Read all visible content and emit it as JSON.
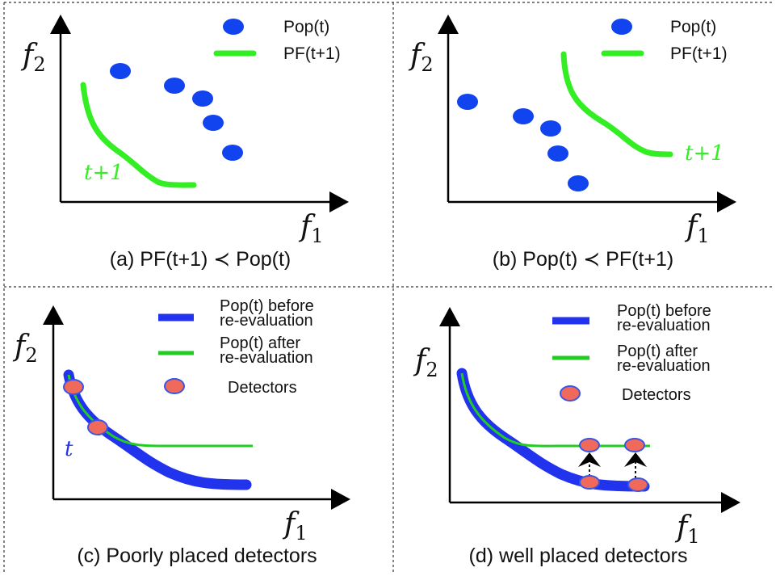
{
  "panels": {
    "a": {
      "caption": "(a) PF(t+1)  ≺  Pop(t)",
      "legend": {
        "pop": "Pop(t)",
        "pf": "PF(t+1)"
      },
      "curve_label": "t+1",
      "x_axis": {
        "letter": "f",
        "sub": "1"
      },
      "y_axis": {
        "letter": "f",
        "sub": "2"
      }
    },
    "b": {
      "caption": "(b) Pop(t)  ≺  PF(t+1)",
      "legend": {
        "pop": "Pop(t)",
        "pf": "PF(t+1)"
      },
      "curve_label": "t+1",
      "x_axis": {
        "letter": "f",
        "sub": "1"
      },
      "y_axis": {
        "letter": "f",
        "sub": "2"
      }
    },
    "c": {
      "caption": "(c) Poorly placed detectors",
      "legend": {
        "before_l1": "Pop(t) before",
        "before_l2": "re-evaluation",
        "after_l1": "Pop(t) after",
        "after_l2": "re-evaluation",
        "detectors": "Detectors"
      },
      "curve_label": "t",
      "x_axis": {
        "letter": "f",
        "sub": "1"
      },
      "y_axis": {
        "letter": "f",
        "sub": "2"
      }
    },
    "d": {
      "caption": "(d) well placed detectors",
      "legend": {
        "before_l1": "Pop(t) before",
        "before_l2": "re-evaluation",
        "after_l1": "Pop(t) after",
        "after_l2": "re-evaluation",
        "detectors": "Detectors"
      },
      "x_axis": {
        "letter": "f",
        "sub": "1"
      },
      "y_axis": {
        "letter": "f",
        "sub": "2"
      }
    }
  },
  "colors": {
    "pareto_front": "#33ee22",
    "population": "#1144ee",
    "before_curve": "#2233ee",
    "after_curve": "#22cc22",
    "detector_fill": "#f06a5c"
  }
}
